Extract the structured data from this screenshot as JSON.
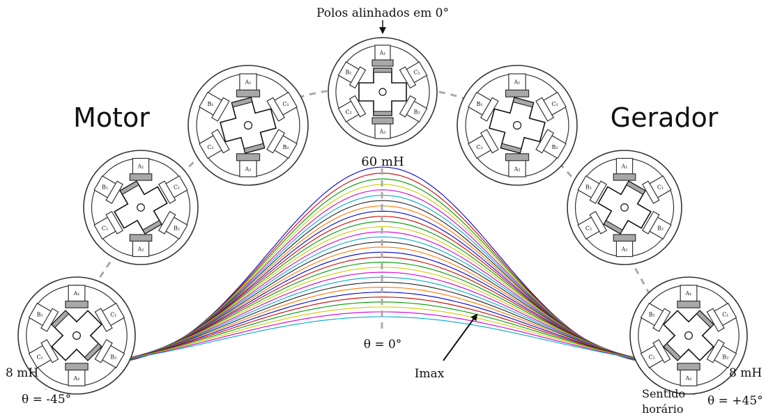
{
  "labels": {
    "top_annotation": "Polos alinhados em 0°",
    "motor": "Motor",
    "gerador": "Gerador",
    "peak": "60 mH",
    "left_value": "8 mH",
    "right_value": "8 mH",
    "theta_center": "θ = 0°",
    "theta_left": "θ = -45°",
    "theta_right": "θ = +45°",
    "imax": "Imax",
    "direction_line1": "Sentido",
    "direction_line2": "horário"
  },
  "pole_labels": {
    "a1": "A₁",
    "a2": "A₂",
    "b1": "B₁",
    "b2": "B₂",
    "c1": "C₁",
    "c2": "C₂"
  },
  "rotor_angles_deg": [
    -45,
    -30,
    -15,
    0,
    15,
    30,
    45
  ],
  "curves": {
    "count": 30,
    "x_range_deg": [
      -45,
      45
    ],
    "min_inductance_mh": 8,
    "max_inductance_mh": 60,
    "colors": [
      "#0000cc",
      "#cc0000",
      "#009900",
      "#cccc00",
      "#cc00cc",
      "#00aacc",
      "#222222",
      "#ff7700"
    ]
  },
  "colors": {
    "guide": "#aaaaaa",
    "pole_shade": "#a8a8a8",
    "outline": "#333333"
  }
}
